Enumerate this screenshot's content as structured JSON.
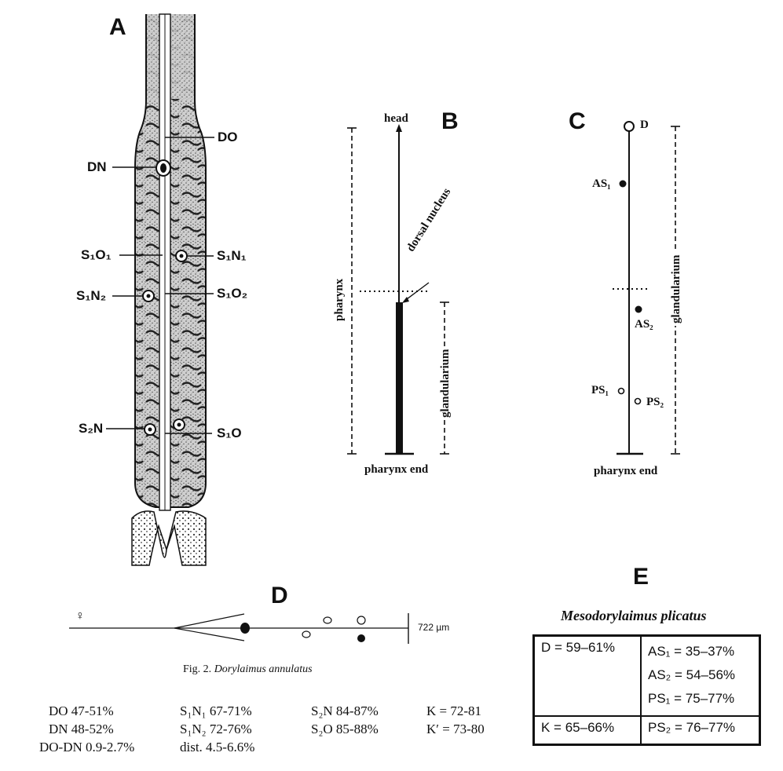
{
  "panels": {
    "A": "A",
    "B": "B",
    "C": "C",
    "D": "D",
    "E": "E"
  },
  "panel_a": {
    "labels": {
      "DO": "DO",
      "DN": "DN",
      "S1O1": "S₁O₁",
      "S1N1": "S₁N₁",
      "S1N2": "S₁N₂",
      "S1O2": "S₁O₂",
      "S2N": "S₂N",
      "S1O": "S₁O"
    }
  },
  "panel_b": {
    "head": "head",
    "dorsal_nucleus": "dorsal nucleus",
    "pharynx": "pharynx",
    "glandularium": "glandularium",
    "pharynx_end": "pharynx end"
  },
  "panel_c": {
    "D": "D",
    "AS1": "AS₁",
    "AS2": "AS₂",
    "PS1": "PS₁",
    "PS2": "PS₂",
    "glandularium": "glandularium",
    "pharynx_end": "pharynx end"
  },
  "panel_d": {
    "scale": "722 µm",
    "caption_prefix": "Fig. 2. ",
    "caption_species": "Dorylaimus annulatus",
    "female_symbol": "♀"
  },
  "measurements": [
    [
      "DO  47-51%",
      "S₁N₁  67-71%",
      "S₂N  84-87%",
      "K  =  72-81"
    ],
    [
      "DN  48-52%",
      "S₁N₂  72-76%",
      "S₂O  85-88%",
      "K′  =  73-80"
    ],
    [
      "DO-DN  0.9-2.7%",
      "dist.  4.5-6.6%",
      "",
      ""
    ]
  ],
  "panel_e": {
    "title": "Mesodorylaimus plicatus",
    "D": "D = 59–61%",
    "K": "K = 65–66%",
    "AS1": "AS₁ = 35–37%",
    "AS2": "AS₂ = 54–56%",
    "PS1": "PS₁ = 75–77%",
    "PS2": "PS₂ = 76–77%"
  }
}
